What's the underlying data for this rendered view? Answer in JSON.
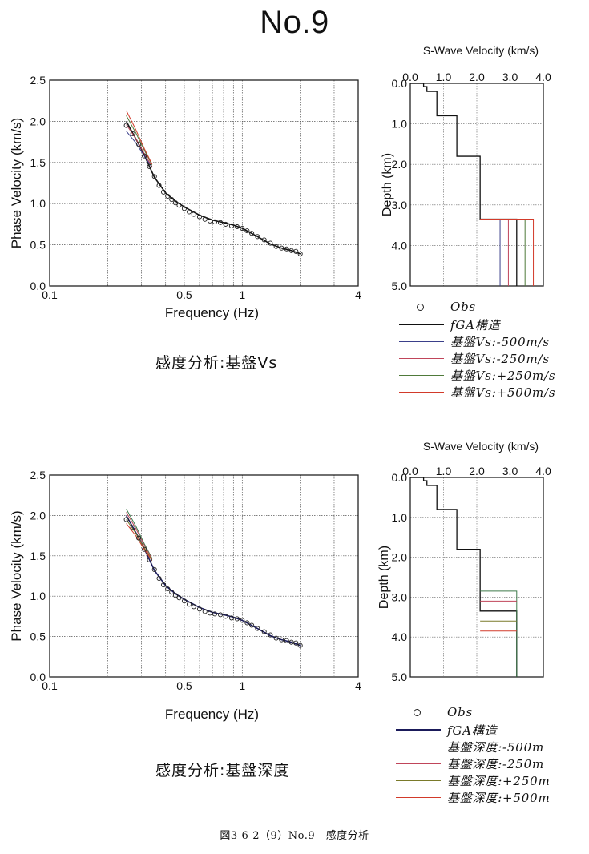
{
  "title": "No.9",
  "figure_caption": "図3-6-2（9）No.9　感度分析",
  "chart_data": [
    {
      "id": "dispersion-1",
      "type": "scatter",
      "xlabel": "Frequency (Hz)",
      "ylabel": "Phase Velocity (km/s)",
      "xscale": "log",
      "xlim": [
        0.1,
        4
      ],
      "ylim": [
        0,
        2.5
      ],
      "xticks": [
        {
          "v": 0.1,
          "label": "0.1"
        },
        {
          "v": 0.5,
          "label": "0.5"
        },
        {
          "v": 1,
          "label": "1"
        },
        {
          "v": 4,
          "label": "4"
        }
      ],
      "yticks": [
        {
          "v": 0,
          "label": "0.0"
        },
        {
          "v": 0.5,
          "label": "0.5"
        },
        {
          "v": 1.0,
          "label": "1.0"
        },
        {
          "v": 1.5,
          "label": "1.5"
        },
        {
          "v": 2.0,
          "label": "2.0"
        },
        {
          "v": 2.5,
          "label": "2.5"
        }
      ],
      "grid": true,
      "caption": "感度分析:基盤Vs",
      "series": [
        {
          "name": "Obs",
          "kind": "points",
          "x": [
            0.25,
            0.27,
            0.29,
            0.31,
            0.33,
            0.35,
            0.37,
            0.39,
            0.41,
            0.43,
            0.45,
            0.47,
            0.5,
            0.53,
            0.56,
            0.6,
            0.64,
            0.68,
            0.72,
            0.77,
            0.82,
            0.88,
            0.94,
            1.0,
            1.06,
            1.12,
            1.2,
            1.3,
            1.4,
            1.5,
            1.6,
            1.7,
            1.8,
            1.9,
            2.0
          ],
          "y": [
            1.95,
            1.85,
            1.72,
            1.58,
            1.45,
            1.33,
            1.22,
            1.14,
            1.09,
            1.05,
            1.01,
            0.98,
            0.94,
            0.9,
            0.87,
            0.84,
            0.81,
            0.79,
            0.78,
            0.77,
            0.75,
            0.73,
            0.72,
            0.7,
            0.67,
            0.64,
            0.6,
            0.56,
            0.52,
            0.48,
            0.46,
            0.45,
            0.43,
            0.42,
            0.39
          ]
        },
        {
          "name": "fGA構造",
          "kind": "line",
          "color": "#111111",
          "x": [
            0.25,
            0.3,
            0.35,
            0.4,
            0.45,
            0.5,
            0.6,
            0.7,
            0.8,
            0.9,
            1.0,
            1.2,
            1.4,
            1.6,
            1.8,
            2.0
          ],
          "y": [
            2.0,
            1.66,
            1.32,
            1.13,
            1.03,
            0.96,
            0.86,
            0.8,
            0.77,
            0.74,
            0.7,
            0.6,
            0.51,
            0.46,
            0.43,
            0.39
          ]
        },
        {
          "name": "基盤Vs:-500m/s",
          "kind": "line",
          "color": "#3a3f8a",
          "x": [
            0.25,
            0.28,
            0.31,
            0.34
          ],
          "y": [
            1.88,
            1.74,
            1.58,
            1.44
          ]
        },
        {
          "name": "基盤Vs:-250m/s",
          "kind": "line",
          "color": "#c0455a",
          "x": [
            0.25,
            0.28,
            0.31,
            0.34
          ],
          "y": [
            1.96,
            1.79,
            1.61,
            1.45
          ]
        },
        {
          "name": "基盤Vs:+250m/s",
          "kind": "line",
          "color": "#4f7a3a",
          "x": [
            0.25,
            0.28,
            0.31,
            0.34
          ],
          "y": [
            2.07,
            1.86,
            1.65,
            1.47
          ]
        },
        {
          "name": "基盤Vs:+500m/s",
          "kind": "line",
          "color": "#d23a2a",
          "x": [
            0.25,
            0.28,
            0.31,
            0.34
          ],
          "y": [
            2.13,
            1.9,
            1.67,
            1.48
          ]
        }
      ]
    },
    {
      "id": "profile-1",
      "type": "line",
      "title": "S-Wave Velocity (km/s)",
      "ylabel": "Depth (km)",
      "xlim": [
        0,
        4
      ],
      "ylim": [
        0,
        5
      ],
      "xticks": [
        {
          "v": 0,
          "label": "0.0"
        },
        {
          "v": 1,
          "label": "1.0"
        },
        {
          "v": 2,
          "label": "2.0"
        },
        {
          "v": 3,
          "label": "3.0"
        },
        {
          "v": 4,
          "label": "4.0"
        }
      ],
      "yticks": [
        {
          "v": 0,
          "label": "0.0"
        },
        {
          "v": 1,
          "label": "1.0"
        },
        {
          "v": 2,
          "label": "2.0"
        },
        {
          "v": 3,
          "label": "3.0"
        },
        {
          "v": 4,
          "label": "4.0"
        },
        {
          "v": 5,
          "label": "5.0"
        }
      ],
      "legend": [
        {
          "label": "Obs",
          "kind": "circle"
        },
        {
          "label": "fGA構造",
          "color": "#111111",
          "thick": true
        },
        {
          "label": "基盤Vs:-500m/s",
          "color": "#3a3f8a"
        },
        {
          "label": "基盤Vs:-250m/s",
          "color": "#c0455a"
        },
        {
          "label": "基盤Vs:+250m/s",
          "color": "#4f7a3a"
        },
        {
          "label": "基盤Vs:+500m/s",
          "color": "#d23a2a"
        }
      ],
      "series": [
        {
          "name": "fGA構造",
          "color": "#111111",
          "points": [
            [
              0,
              0
            ],
            [
              0.4,
              0
            ],
            [
              0.4,
              0.08
            ],
            [
              0.5,
              0.08
            ],
            [
              0.5,
              0.2
            ],
            [
              0.8,
              0.2
            ],
            [
              0.8,
              0.8
            ],
            [
              1.4,
              0.8
            ],
            [
              1.4,
              1.8
            ],
            [
              2.1,
              1.8
            ],
            [
              2.1,
              3.35
            ],
            [
              3.2,
              3.35
            ],
            [
              3.2,
              5
            ]
          ]
        },
        {
          "name": "基盤Vs:-500m/s",
          "color": "#3a3f8a",
          "points": [
            [
              2.1,
              3.35
            ],
            [
              2.7,
              3.35
            ],
            [
              2.7,
              5
            ]
          ]
        },
        {
          "name": "基盤Vs:-250m/s",
          "color": "#c0455a",
          "points": [
            [
              2.1,
              3.35
            ],
            [
              2.95,
              3.35
            ],
            [
              2.95,
              5
            ]
          ]
        },
        {
          "name": "基盤Vs:+250m/s",
          "color": "#4f7a3a",
          "points": [
            [
              2.1,
              3.35
            ],
            [
              3.45,
              3.35
            ],
            [
              3.45,
              5
            ]
          ]
        },
        {
          "name": "基盤Vs:+500m/s",
          "color": "#d23a2a",
          "points": [
            [
              2.1,
              3.35
            ],
            [
              3.7,
              3.35
            ],
            [
              3.7,
              5
            ]
          ]
        }
      ]
    },
    {
      "id": "dispersion-2",
      "type": "scatter",
      "xlabel": "Frequency (Hz)",
      "ylabel": "Phase Velocity (km/s)",
      "xscale": "log",
      "xlim": [
        0.1,
        4
      ],
      "ylim": [
        0,
        2.5
      ],
      "xticks": [
        {
          "v": 0.1,
          "label": "0.1"
        },
        {
          "v": 0.5,
          "label": "0.5"
        },
        {
          "v": 1,
          "label": "1"
        },
        {
          "v": 4,
          "label": "4"
        }
      ],
      "yticks": [
        {
          "v": 0,
          "label": "0.0"
        },
        {
          "v": 0.5,
          "label": "0.5"
        },
        {
          "v": 1.0,
          "label": "1.0"
        },
        {
          "v": 1.5,
          "label": "1.5"
        },
        {
          "v": 2.0,
          "label": "2.0"
        },
        {
          "v": 2.5,
          "label": "2.5"
        }
      ],
      "grid": true,
      "caption": "感度分析:基盤深度",
      "series": [
        {
          "name": "Obs",
          "kind": "points",
          "x": [
            0.25,
            0.27,
            0.29,
            0.31,
            0.33,
            0.35,
            0.37,
            0.39,
            0.41,
            0.43,
            0.45,
            0.47,
            0.5,
            0.53,
            0.56,
            0.6,
            0.64,
            0.68,
            0.72,
            0.77,
            0.82,
            0.88,
            0.94,
            1.0,
            1.06,
            1.12,
            1.2,
            1.3,
            1.4,
            1.5,
            1.6,
            1.7,
            1.8,
            1.9,
            2.0
          ],
          "y": [
            1.95,
            1.85,
            1.72,
            1.58,
            1.45,
            1.33,
            1.22,
            1.14,
            1.09,
            1.05,
            1.01,
            0.98,
            0.94,
            0.9,
            0.87,
            0.84,
            0.81,
            0.79,
            0.78,
            0.77,
            0.75,
            0.73,
            0.72,
            0.7,
            0.67,
            0.64,
            0.6,
            0.56,
            0.52,
            0.48,
            0.46,
            0.45,
            0.43,
            0.42,
            0.39
          ]
        },
        {
          "name": "fGA構造",
          "kind": "line",
          "color": "#1a1a5a",
          "x": [
            0.25,
            0.3,
            0.35,
            0.4,
            0.45,
            0.5,
            0.6,
            0.7,
            0.8,
            0.9,
            1.0,
            1.2,
            1.4,
            1.6,
            1.8,
            2.0
          ],
          "y": [
            2.0,
            1.66,
            1.32,
            1.13,
            1.03,
            0.96,
            0.86,
            0.8,
            0.77,
            0.74,
            0.7,
            0.6,
            0.51,
            0.46,
            0.43,
            0.39
          ]
        },
        {
          "name": "基盤深度:-500m",
          "kind": "line",
          "color": "#3d7a4a",
          "x": [
            0.25,
            0.28,
            0.31,
            0.34
          ],
          "y": [
            2.08,
            1.87,
            1.65,
            1.47
          ]
        },
        {
          "name": "基盤深度:-250m",
          "kind": "line",
          "color": "#c0455a",
          "x": [
            0.25,
            0.28,
            0.31,
            0.34
          ],
          "y": [
            2.04,
            1.84,
            1.63,
            1.46
          ]
        },
        {
          "name": "基盤深度:+250m",
          "kind": "line",
          "color": "#7a7a2a",
          "x": [
            0.25,
            0.28,
            0.31,
            0.34
          ],
          "y": [
            1.95,
            1.78,
            1.6,
            1.45
          ]
        },
        {
          "name": "基盤深度:+500m",
          "kind": "line",
          "color": "#d23a2a",
          "x": [
            0.25,
            0.28,
            0.31,
            0.34
          ],
          "y": [
            1.9,
            1.75,
            1.58,
            1.44
          ]
        }
      ]
    },
    {
      "id": "profile-2",
      "type": "line",
      "title": "S-Wave Velocity (km/s)",
      "ylabel": "Depth (km)",
      "xlim": [
        0,
        4
      ],
      "ylim": [
        0,
        5
      ],
      "xticks": [
        {
          "v": 0,
          "label": "0.0"
        },
        {
          "v": 1,
          "label": "1.0"
        },
        {
          "v": 2,
          "label": "2.0"
        },
        {
          "v": 3,
          "label": "3.0"
        },
        {
          "v": 4,
          "label": "4.0"
        }
      ],
      "yticks": [
        {
          "v": 0,
          "label": "0.0"
        },
        {
          "v": 1,
          "label": "1.0"
        },
        {
          "v": 2,
          "label": "2.0"
        },
        {
          "v": 3,
          "label": "3.0"
        },
        {
          "v": 4,
          "label": "4.0"
        },
        {
          "v": 5,
          "label": "5.0"
        }
      ],
      "legend": [
        {
          "label": "Obs",
          "kind": "circle"
        },
        {
          "label": "fGA構造",
          "color": "#1a1a5a",
          "thick": true
        },
        {
          "label": "基盤深度:-500m",
          "color": "#3d7a4a"
        },
        {
          "label": "基盤深度:-250m",
          "color": "#c0455a"
        },
        {
          "label": "基盤深度:+250m",
          "color": "#7a7a2a"
        },
        {
          "label": "基盤深度:+500m",
          "color": "#d23a2a"
        }
      ],
      "series": [
        {
          "name": "fGA構造",
          "color": "#111111",
          "points": [
            [
              0,
              0
            ],
            [
              0.4,
              0
            ],
            [
              0.4,
              0.08
            ],
            [
              0.5,
              0.08
            ],
            [
              0.5,
              0.2
            ],
            [
              0.8,
              0.2
            ],
            [
              0.8,
              0.8
            ],
            [
              1.4,
              0.8
            ],
            [
              1.4,
              1.8
            ],
            [
              2.1,
              1.8
            ],
            [
              2.1,
              3.35
            ],
            [
              3.2,
              3.35
            ],
            [
              3.2,
              5
            ]
          ]
        },
        {
          "name": "基盤深度:-500m",
          "color": "#3d7a4a",
          "points": [
            [
              2.1,
              2.85
            ],
            [
              3.2,
              2.85
            ],
            [
              3.2,
              5
            ]
          ]
        },
        {
          "name": "基盤深度:-250m",
          "color": "#c0455a",
          "points": [
            [
              2.1,
              3.1
            ],
            [
              3.2,
              3.1
            ]
          ]
        },
        {
          "name": "基盤深度:+250m",
          "color": "#7a7a2a",
          "points": [
            [
              2.1,
              3.6
            ],
            [
              3.2,
              3.6
            ]
          ]
        },
        {
          "name": "基盤深度:+500m",
          "color": "#d23a2a",
          "points": [
            [
              2.1,
              3.85
            ],
            [
              3.2,
              3.85
            ]
          ]
        }
      ]
    }
  ]
}
